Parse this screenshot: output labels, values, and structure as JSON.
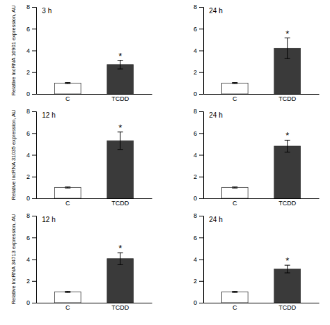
{
  "chart_data": [
    {
      "type": "bar",
      "categories": [
        "C",
        "TCDD"
      ],
      "values": [
        1.0,
        2.7
      ],
      "errors": [
        0.05,
        0.4
      ],
      "colors": [
        "white",
        "#3a3a3a"
      ],
      "ylabel": "Relative lncRNA 16901 expression, AU",
      "annotations": [
        {
          "text": "3 h"
        },
        {
          "text": "*",
          "x": "TCDD"
        }
      ],
      "ylim": [
        0,
        8
      ],
      "yticks": [
        0,
        2,
        4,
        6,
        8
      ],
      "grid": false
    },
    {
      "type": "bar",
      "categories": [
        "C",
        "TCDD"
      ],
      "values": [
        1.0,
        4.2
      ],
      "errors": [
        0.05,
        0.95
      ],
      "colors": [
        "white",
        "#3a3a3a"
      ],
      "annotations": [
        {
          "text": "24 h"
        },
        {
          "text": "*",
          "x": "TCDD"
        }
      ],
      "ylim": [
        0,
        8
      ],
      "yticks": [
        0,
        2,
        4,
        6,
        8
      ],
      "grid": false
    },
    {
      "type": "bar",
      "categories": [
        "C",
        "TCDD"
      ],
      "values": [
        1.0,
        5.3
      ],
      "errors": [
        0.05,
        0.8
      ],
      "colors": [
        "white",
        "#3a3a3a"
      ],
      "ylabel": "Relative lncRNA 31035 expression, AU",
      "annotations": [
        {
          "text": "12 h"
        },
        {
          "text": "*",
          "x": "TCDD"
        }
      ],
      "ylim": [
        0,
        8
      ],
      "yticks": [
        0,
        2,
        4,
        6,
        8
      ],
      "grid": false
    },
    {
      "type": "bar",
      "categories": [
        "C",
        "TCDD"
      ],
      "values": [
        1.0,
        4.8
      ],
      "errors": [
        0.05,
        0.55
      ],
      "colors": [
        "white",
        "#3a3a3a"
      ],
      "annotations": [
        {
          "text": "24 h"
        },
        {
          "text": "*",
          "x": "TCDD"
        }
      ],
      "ylim": [
        0,
        8
      ],
      "yticks": [
        0,
        2,
        4,
        6,
        8
      ],
      "grid": false
    },
    {
      "type": "bar",
      "categories": [
        "C",
        "TCDD"
      ],
      "values": [
        1.0,
        4.05
      ],
      "errors": [
        0.05,
        0.55
      ],
      "colors": [
        "white",
        "#3a3a3a"
      ],
      "ylabel": "Relative lncRNA 34713 expression, AU",
      "annotations": [
        {
          "text": "12 h"
        },
        {
          "text": "*",
          "x": "TCDD"
        }
      ],
      "ylim": [
        0,
        8
      ],
      "yticks": [
        0,
        2,
        4,
        6,
        8
      ],
      "grid": false
    },
    {
      "type": "bar",
      "categories": [
        "C",
        "TCDD"
      ],
      "values": [
        1.0,
        3.1
      ],
      "errors": [
        0.05,
        0.35
      ],
      "colors": [
        "white",
        "#3a3a3a"
      ],
      "annotations": [
        {
          "text": "24 h"
        },
        {
          "text": "*",
          "x": "TCDD"
        }
      ],
      "ylim": [
        0,
        8
      ],
      "yticks": [
        0,
        2,
        4,
        6,
        8
      ],
      "grid": false
    }
  ]
}
